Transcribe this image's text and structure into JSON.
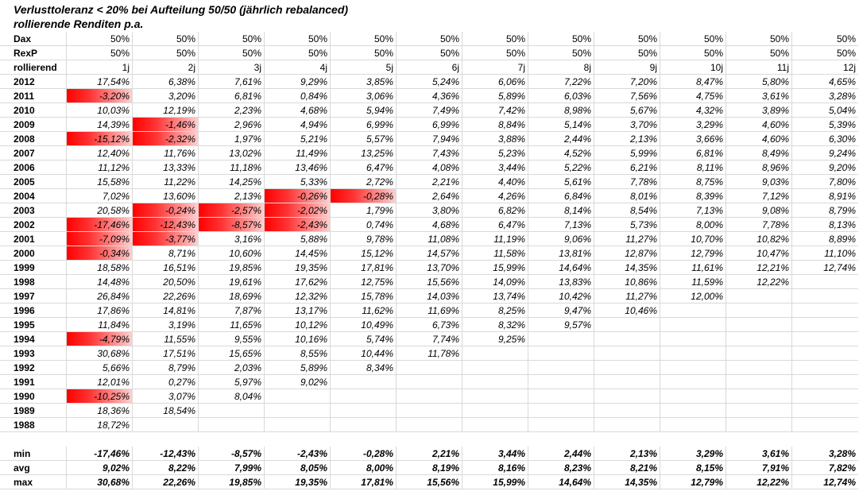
{
  "title": "Verlusttoleranz < 20% bei Aufteilung 50/50 (jährlich rebalanced)",
  "subtitle": "rollierende Renditen p.a.",
  "header_rows": [
    {
      "label": "Dax",
      "values": [
        "50%",
        "50%",
        "50%",
        "50%",
        "50%",
        "50%",
        "50%",
        "50%",
        "50%",
        "50%",
        "50%",
        "50%"
      ]
    },
    {
      "label": "RexP",
      "values": [
        "50%",
        "50%",
        "50%",
        "50%",
        "50%",
        "50%",
        "50%",
        "50%",
        "50%",
        "50%",
        "50%",
        "50%"
      ]
    },
    {
      "label": "rollierend",
      "values": [
        "1j",
        "2j",
        "3j",
        "4j",
        "5j",
        "6j",
        "7j",
        "8j",
        "9j",
        "10j",
        "11j",
        "12j"
      ]
    }
  ],
  "rows": [
    {
      "year": "2012",
      "values": [
        "17,54%",
        "6,38%",
        "7,61%",
        "9,29%",
        "3,85%",
        "5,24%",
        "6,06%",
        "7,22%",
        "7,20%",
        "8,47%",
        "5,80%",
        "4,65%"
      ]
    },
    {
      "year": "2011",
      "values": [
        "-3,20%",
        "3,20%",
        "6,81%",
        "0,84%",
        "3,06%",
        "4,36%",
        "5,89%",
        "6,03%",
        "7,56%",
        "4,75%",
        "3,61%",
        "3,28%"
      ]
    },
    {
      "year": "2010",
      "values": [
        "10,03%",
        "12,19%",
        "2,23%",
        "4,68%",
        "5,94%",
        "7,49%",
        "7,42%",
        "8,98%",
        "5,67%",
        "4,32%",
        "3,89%",
        "5,04%"
      ]
    },
    {
      "year": "2009",
      "values": [
        "14,39%",
        "-1,46%",
        "2,96%",
        "4,94%",
        "6,99%",
        "6,99%",
        "8,84%",
        "5,14%",
        "3,70%",
        "3,29%",
        "4,60%",
        "5,39%"
      ]
    },
    {
      "year": "2008",
      "values": [
        "-15,12%",
        "-2,32%",
        "1,97%",
        "5,21%",
        "5,57%",
        "7,94%",
        "3,88%",
        "2,44%",
        "2,13%",
        "3,66%",
        "4,60%",
        "6,30%"
      ]
    },
    {
      "year": "2007",
      "values": [
        "12,40%",
        "11,76%",
        "13,02%",
        "11,49%",
        "13,25%",
        "7,43%",
        "5,23%",
        "4,52%",
        "5,99%",
        "6,81%",
        "8,49%",
        "9,24%"
      ]
    },
    {
      "year": "2006",
      "values": [
        "11,12%",
        "13,33%",
        "11,18%",
        "13,46%",
        "6,47%",
        "4,08%",
        "3,44%",
        "5,22%",
        "6,21%",
        "8,11%",
        "8,96%",
        "9,20%"
      ]
    },
    {
      "year": "2005",
      "values": [
        "15,58%",
        "11,22%",
        "14,25%",
        "5,33%",
        "2,72%",
        "2,21%",
        "4,40%",
        "5,61%",
        "7,78%",
        "8,75%",
        "9,03%",
        "7,80%"
      ]
    },
    {
      "year": "2004",
      "values": [
        "7,02%",
        "13,60%",
        "2,13%",
        "-0,26%",
        "-0,28%",
        "2,64%",
        "4,26%",
        "6,84%",
        "8,01%",
        "8,39%",
        "7,12%",
        "8,91%"
      ]
    },
    {
      "year": "2003",
      "values": [
        "20,58%",
        "-0,24%",
        "-2,57%",
        "-2,02%",
        "1,79%",
        "3,80%",
        "6,82%",
        "8,14%",
        "8,54%",
        "7,13%",
        "9,08%",
        "8,79%"
      ]
    },
    {
      "year": "2002",
      "values": [
        "-17,46%",
        "-12,43%",
        "-8,57%",
        "-2,43%",
        "0,74%",
        "4,68%",
        "6,47%",
        "7,13%",
        "5,73%",
        "8,00%",
        "7,78%",
        "8,13%"
      ]
    },
    {
      "year": "2001",
      "values": [
        "-7,09%",
        "-3,77%",
        "3,16%",
        "5,88%",
        "9,78%",
        "11,08%",
        "11,19%",
        "9,06%",
        "11,27%",
        "10,70%",
        "10,82%",
        "8,89%"
      ]
    },
    {
      "year": "2000",
      "values": [
        "-0,34%",
        "8,71%",
        "10,60%",
        "14,45%",
        "15,12%",
        "14,57%",
        "11,58%",
        "13,81%",
        "12,87%",
        "12,79%",
        "10,47%",
        "11,10%"
      ]
    },
    {
      "year": "1999",
      "values": [
        "18,58%",
        "16,51%",
        "19,85%",
        "19,35%",
        "17,81%",
        "13,70%",
        "15,99%",
        "14,64%",
        "14,35%",
        "11,61%",
        "12,21%",
        "12,74%"
      ]
    },
    {
      "year": "1998",
      "values": [
        "14,48%",
        "20,50%",
        "19,61%",
        "17,62%",
        "12,75%",
        "15,56%",
        "14,09%",
        "13,83%",
        "10,86%",
        "11,59%",
        "12,22%",
        ""
      ]
    },
    {
      "year": "1997",
      "values": [
        "26,84%",
        "22,26%",
        "18,69%",
        "12,32%",
        "15,78%",
        "14,03%",
        "13,74%",
        "10,42%",
        "11,27%",
        "12,00%",
        "",
        ""
      ]
    },
    {
      "year": "1996",
      "values": [
        "17,86%",
        "14,81%",
        "7,87%",
        "13,17%",
        "11,62%",
        "11,69%",
        "8,25%",
        "9,47%",
        "10,46%",
        "",
        "",
        ""
      ]
    },
    {
      "year": "1995",
      "values": [
        "11,84%",
        "3,19%",
        "11,65%",
        "10,12%",
        "10,49%",
        "6,73%",
        "8,32%",
        "9,57%",
        "",
        "",
        "",
        ""
      ]
    },
    {
      "year": "1994",
      "values": [
        "-4,79%",
        "11,55%",
        "9,55%",
        "10,16%",
        "5,74%",
        "7,74%",
        "9,25%",
        "",
        "",
        "",
        "",
        ""
      ]
    },
    {
      "year": "1993",
      "values": [
        "30,68%",
        "17,51%",
        "15,65%",
        "8,55%",
        "10,44%",
        "11,78%",
        "",
        "",
        "",
        "",
        "",
        ""
      ]
    },
    {
      "year": "1992",
      "values": [
        "5,66%",
        "8,79%",
        "2,03%",
        "5,89%",
        "8,34%",
        "",
        "",
        "",
        "",
        "",
        "",
        ""
      ]
    },
    {
      "year": "1991",
      "values": [
        "12,01%",
        "0,27%",
        "5,97%",
        "9,02%",
        "",
        "",
        "",
        "",
        "",
        "",
        "",
        ""
      ]
    },
    {
      "year": "1990",
      "values": [
        "-10,25%",
        "3,07%",
        "8,04%",
        "",
        "",
        "",
        "",
        "",
        "",
        "",
        "",
        ""
      ]
    },
    {
      "year": "1989",
      "values": [
        "18,36%",
        "18,54%",
        "",
        "",
        "",
        "",
        "",
        "",
        "",
        "",
        "",
        ""
      ]
    },
    {
      "year": "1988",
      "values": [
        "18,72%",
        "",
        "",
        "",
        "",
        "",
        "",
        "",
        "",
        "",
        "",
        ""
      ]
    }
  ],
  "stats": [
    {
      "label": "min",
      "values": [
        "-17,46%",
        "-12,43%",
        "-8,57%",
        "-2,43%",
        "-0,28%",
        "2,21%",
        "3,44%",
        "2,44%",
        "2,13%",
        "3,29%",
        "3,61%",
        "3,28%"
      ]
    },
    {
      "label": "avg",
      "values": [
        "9,02%",
        "8,22%",
        "7,99%",
        "8,05%",
        "8,00%",
        "8,19%",
        "8,16%",
        "8,23%",
        "8,21%",
        "8,15%",
        "7,91%",
        "7,82%"
      ]
    },
    {
      "label": "max",
      "values": [
        "30,68%",
        "22,26%",
        "19,85%",
        "19,35%",
        "17,81%",
        "15,56%",
        "15,99%",
        "14,64%",
        "14,35%",
        "12,79%",
        "12,22%",
        "12,74%"
      ]
    }
  ],
  "colors": {
    "negative_fill": "#ff0000",
    "grid": "#d9d9d9"
  }
}
